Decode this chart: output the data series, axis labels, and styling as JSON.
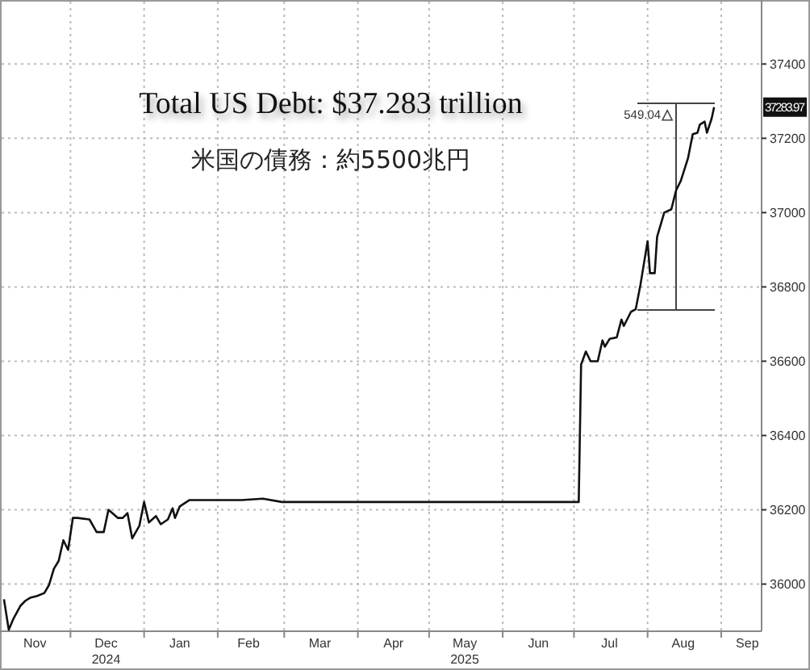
{
  "chart_data": {
    "type": "line",
    "title": "Total US Debt: $37.283 trillion",
    "subtitle": "米国の債務：約5500兆円",
    "x": [
      "2024-11-03",
      "2024-11-05",
      "2024-11-07",
      "2024-11-10",
      "2024-11-12",
      "2024-11-14",
      "2024-11-17",
      "2024-11-20",
      "2024-11-22",
      "2024-11-24",
      "2024-11-26",
      "2024-11-28",
      "2024-11-30",
      "2024-12-02",
      "2024-12-04",
      "2024-12-09",
      "2024-12-12",
      "2024-12-15",
      "2024-12-17",
      "2024-12-21",
      "2024-12-23",
      "2024-12-25",
      "2024-12-27",
      "2024-12-30",
      "2025-01-01",
      "2025-01-03",
      "2025-01-06",
      "2025-01-08",
      "2025-01-11",
      "2025-01-13",
      "2025-01-14",
      "2025-01-16",
      "2025-01-20",
      "2025-01-23",
      "2025-02-01",
      "2025-02-11",
      "2025-02-20",
      "2025-02-28",
      "2025-03-17",
      "2025-04-07",
      "2025-04-27",
      "2025-05-17",
      "2025-06-13",
      "2025-07-03",
      "2025-07-04",
      "2025-07-06",
      "2025-07-08",
      "2025-07-11",
      "2025-07-13",
      "2025-07-14",
      "2025-07-16",
      "2025-07-19",
      "2025-07-21",
      "2025-07-22",
      "2025-07-25",
      "2025-07-27",
      "2025-07-29",
      "2025-08-01",
      "2025-08-02",
      "2025-08-04",
      "2025-08-05",
      "2025-08-08",
      "2025-08-11",
      "2025-08-13",
      "2025-08-15",
      "2025-08-18",
      "2025-08-20",
      "2025-08-22",
      "2025-08-23",
      "2025-08-25",
      "2025-08-26",
      "2025-08-28",
      "2025-08-29"
    ],
    "series": [
      {
        "color": "#111111",
        "values": [
          35959,
          35877,
          35907,
          35942,
          35955,
          35963,
          35968,
          35976,
          35998,
          36041,
          36062,
          36118,
          36092,
          36178,
          36178,
          36174,
          36140,
          36140,
          36200,
          36178,
          36178,
          36191,
          36123,
          36157,
          36221,
          36166,
          36183,
          36161,
          36174,
          36204,
          36178,
          36209,
          36226,
          36226,
          36226,
          36226,
          36230,
          36221,
          36221,
          36221,
          36221,
          36221,
          36221,
          36221,
          36591,
          36626,
          36600,
          36600,
          36656,
          36639,
          36660,
          36664,
          36712,
          36695,
          36733,
          36740,
          36806,
          36923,
          36837,
          36837,
          36935,
          37000,
          37009,
          37060,
          37086,
          37146,
          37211,
          37215,
          37237,
          37245,
          37215,
          37254,
          37283.97
        ]
      }
    ],
    "xlim": [
      "2024-11-02",
      "2025-09-18"
    ],
    "xticks": [
      {
        "value": "2024-11-16",
        "label": "Nov"
      },
      {
        "value": "2024-12-01",
        "label": null
      },
      {
        "value": "2024-12-16",
        "label": "Dec\n2024"
      },
      {
        "value": "2025-01-01",
        "label": null
      },
      {
        "value": "2025-01-16",
        "label": "Jan"
      },
      {
        "value": "2025-02-01",
        "label": null
      },
      {
        "value": "2025-02-14",
        "label": "Feb"
      },
      {
        "value": "2025-03-01",
        "label": null
      },
      {
        "value": "2025-03-16",
        "label": "Mar"
      },
      {
        "value": "2025-04-01",
        "label": null
      },
      {
        "value": "2025-04-16",
        "label": "Apr"
      },
      {
        "value": "2025-05-01",
        "label": null
      },
      {
        "value": "2025-05-16",
        "label": "May\n2025"
      },
      {
        "value": "2025-06-01",
        "label": null
      },
      {
        "value": "2025-06-16",
        "label": "Jun"
      },
      {
        "value": "2025-07-01",
        "label": null
      },
      {
        "value": "2025-07-16",
        "label": "Jul"
      },
      {
        "value": "2025-08-01",
        "label": null
      },
      {
        "value": "2025-08-16",
        "label": "Aug"
      },
      {
        "value": "2025-09-01",
        "label": null
      },
      {
        "value": "2025-09-12",
        "label": "Sep"
      }
    ],
    "ylim": [
      35873,
      37568
    ],
    "yticks": [
      36000,
      36200,
      36400,
      36600,
      36800,
      37000,
      37200,
      37400
    ],
    "grid": true,
    "marker": "none",
    "line_style": "solid",
    "annotations": [
      {
        "text": "37283.97",
        "y": 37283.97
      },
      {
        "text": "549.04",
        "x": "2025-08-29",
        "y": 37283.97
      }
    ]
  }
}
